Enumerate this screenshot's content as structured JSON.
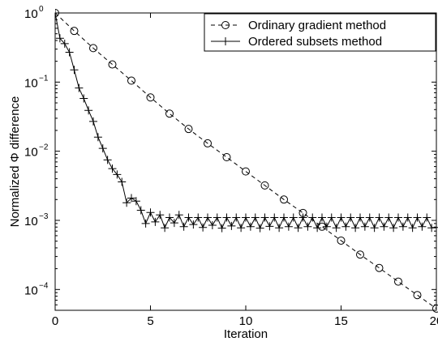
{
  "chart_data": {
    "type": "line",
    "title": "",
    "xlabel": "Iteration",
    "ylabel": "Normalized Φ difference",
    "xlim": [
      0,
      20
    ],
    "ylim": [
      5e-05,
      1
    ],
    "yscale": "log",
    "grid": false,
    "legend_position": "top-right",
    "x_ticks": [
      {
        "value": 0,
        "label": "0"
      },
      {
        "value": 5,
        "label": "5"
      },
      {
        "value": 10,
        "label": "10"
      },
      {
        "value": 15,
        "label": "15"
      },
      {
        "value": 20,
        "label": "20"
      }
    ],
    "y_ticks": [
      {
        "value": 1,
        "base": "10",
        "exp": "0"
      },
      {
        "value": 0.1,
        "base": "10",
        "exp": "−1"
      },
      {
        "value": 0.01,
        "base": "10",
        "exp": "−2"
      },
      {
        "value": 0.001,
        "base": "10",
        "exp": "−3"
      },
      {
        "value": 0.0001,
        "base": "10",
        "exp": "−4"
      }
    ],
    "series": [
      {
        "name": "Ordinary gradient method",
        "line_style": "dashed",
        "marker": "circle",
        "x": [
          0,
          1,
          2,
          3,
          4,
          5,
          6,
          7,
          8,
          9,
          10,
          11,
          12,
          13,
          14,
          15,
          16,
          17,
          18,
          19,
          20
        ],
        "y": [
          1,
          0.55,
          0.31,
          0.18,
          0.105,
          0.06,
          0.035,
          0.021,
          0.013,
          0.0082,
          0.0051,
          0.0032,
          0.002,
          0.00128,
          0.00081,
          0.00051,
          0.00032,
          0.000205,
          0.00013,
          8.3e-05,
          5.3e-05
        ]
      },
      {
        "name": "Ordered subsets method",
        "line_style": "solid",
        "marker": "plus",
        "x": [
          0,
          0.25,
          0.5,
          0.75,
          1,
          1.25,
          1.5,
          1.75,
          2,
          2.25,
          2.5,
          2.75,
          3,
          3.25,
          3.5,
          3.75,
          4,
          4.25,
          4.5,
          4.75,
          5,
          5.25,
          5.5,
          5.75,
          6,
          6.25,
          6.5,
          6.75,
          7,
          7.25,
          7.5,
          7.75,
          8,
          8.25,
          8.5,
          8.75,
          9,
          9.25,
          9.5,
          9.75,
          10,
          10.25,
          10.5,
          10.75,
          11,
          11.25,
          11.5,
          11.75,
          12,
          12.25,
          12.5,
          12.75,
          13,
          13.25,
          13.5,
          13.75,
          14,
          14.25,
          14.5,
          14.75,
          15,
          15.25,
          15.5,
          15.75,
          16,
          16.25,
          16.5,
          16.75,
          17,
          17.25,
          17.5,
          17.75,
          18,
          18.25,
          18.5,
          18.75,
          19,
          19.25,
          19.5,
          19.75,
          20
        ],
        "y": [
          1,
          0.43,
          0.36,
          0.27,
          0.15,
          0.082,
          0.058,
          0.039,
          0.027,
          0.016,
          0.011,
          0.0075,
          0.0056,
          0.0046,
          0.0036,
          0.0018,
          0.0021,
          0.0019,
          0.0014,
          0.0009,
          0.0013,
          0.00095,
          0.0012,
          0.00078,
          0.0011,
          0.00092,
          0.0012,
          0.00081,
          0.0011,
          0.00087,
          0.0011,
          0.00079,
          0.0011,
          0.00085,
          0.0011,
          0.00077,
          0.0011,
          0.00083,
          0.0011,
          0.00078,
          0.0011,
          0.00081,
          0.0011,
          0.00077,
          0.0011,
          0.00082,
          0.0011,
          0.00078,
          0.0011,
          0.00081,
          0.0011,
          0.00078,
          0.0011,
          0.00081,
          0.0011,
          0.00078,
          0.0011,
          0.00081,
          0.0011,
          0.00078,
          0.0011,
          0.00081,
          0.0011,
          0.00078,
          0.0011,
          0.00081,
          0.0011,
          0.00078,
          0.0011,
          0.00081,
          0.0011,
          0.00078,
          0.0011,
          0.00081,
          0.0011,
          0.00078,
          0.0011,
          0.00081,
          0.0011,
          0.00078,
          0.00079
        ]
      }
    ]
  }
}
